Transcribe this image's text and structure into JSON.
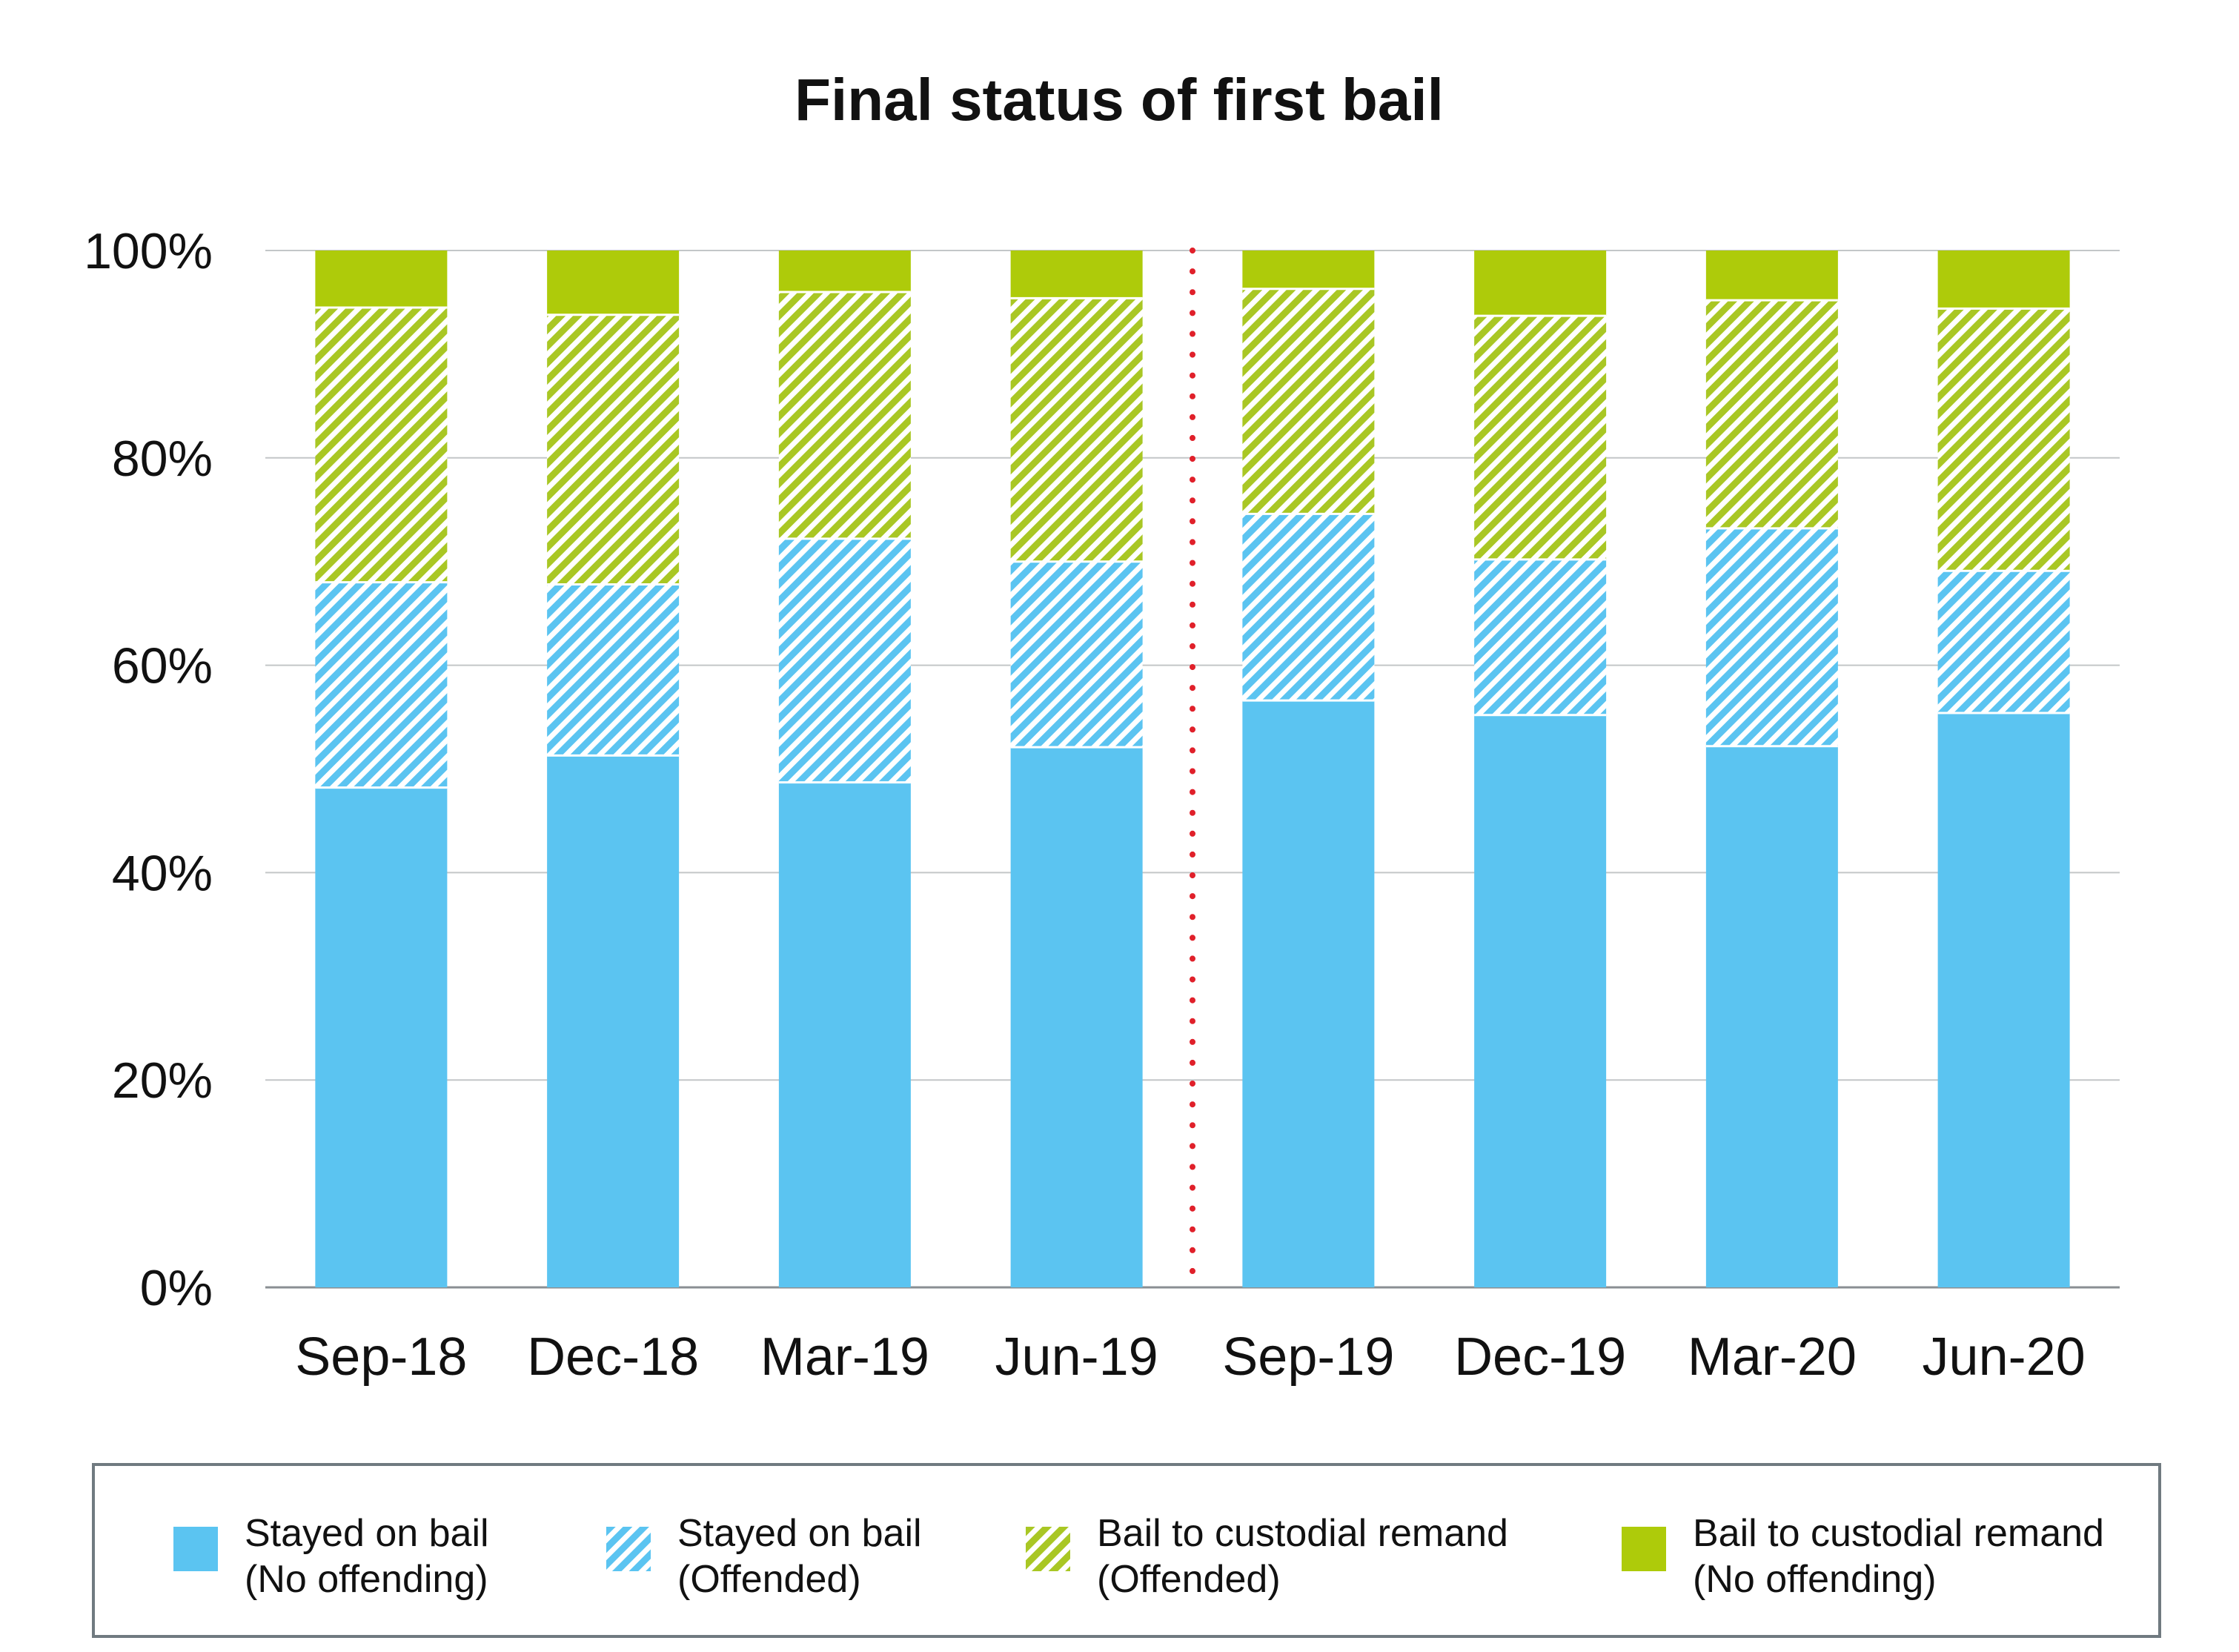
{
  "chart_data": {
    "type": "bar",
    "stacked": true,
    "title": "Final status of first bail",
    "xlabel": "",
    "ylabel": "",
    "ylim": [
      0,
      100
    ],
    "yticks": [
      "0%",
      "20%",
      "40%",
      "60%",
      "80%",
      "100%"
    ],
    "grid": true,
    "legend_position": "bottom",
    "categories": [
      "Sep-18",
      "Dec-18",
      "Mar-19",
      "Jun-19",
      "Sep-19",
      "Dec-19",
      "Mar-20",
      "Jun-20"
    ],
    "reference_line_between": [
      "Jun-19",
      "Sep-19"
    ],
    "reference_line_color": "#e0202a",
    "series": [
      {
        "label_line1": "Stayed on bail",
        "label_line2": "(No offending)",
        "color": "#5bc4f1",
        "pattern": "solid",
        "values": [
          48.2,
          51.3,
          48.7,
          52.1,
          56.6,
          55.2,
          52.2,
          55.4
        ]
      },
      {
        "label_line1": "Stayed on bail",
        "label_line2": "(Offended)",
        "color": "#5bc4f1",
        "pattern": "hatched",
        "values": [
          19.8,
          16.5,
          23.5,
          17.9,
          18.0,
          15.0,
          21.0,
          13.7
        ]
      },
      {
        "label_line1": "Bail to custodial remand",
        "label_line2": "(Offended)",
        "color": "#a9c724",
        "pattern": "hatched",
        "values": [
          26.5,
          26.0,
          23.8,
          25.4,
          21.7,
          23.5,
          22.0,
          25.3
        ]
      },
      {
        "label_line1": "Bail to custodial remand",
        "label_line2": "(No offending)",
        "color": "#aecb0a",
        "pattern": "solid",
        "values": [
          5.5,
          6.2,
          4.0,
          4.6,
          3.7,
          6.3,
          4.8,
          5.6
        ]
      }
    ]
  }
}
